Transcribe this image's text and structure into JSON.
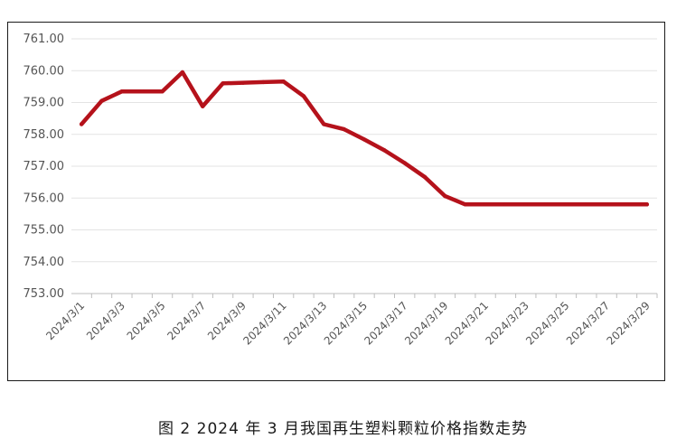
{
  "caption": "图 2  2024 年 3 月我国再生塑料颗粒价格指数走势",
  "chart_data": {
    "type": "line",
    "title": "",
    "xlabel": "",
    "ylabel": "",
    "ylim": [
      753.0,
      761.0
    ],
    "yticks": [
      753.0,
      754.0,
      755.0,
      756.0,
      757.0,
      758.0,
      759.0,
      760.0,
      761.0
    ],
    "ytick_labels": [
      "753.00",
      "754.00",
      "755.00",
      "756.00",
      "757.00",
      "758.00",
      "759.00",
      "760.00",
      "761.00"
    ],
    "grid": true,
    "legend": "none",
    "line_color": "#b5121b",
    "x_tick_labels": [
      "2024/3/1",
      "2024/3/3",
      "2024/3/5",
      "2024/3/7",
      "2024/3/9",
      "2024/3/11",
      "2024/3/13",
      "2024/3/15",
      "2024/3/17",
      "2024/3/19",
      "2024/3/21",
      "2024/3/23",
      "2024/3/25",
      "2024/3/27",
      "2024/3/29"
    ],
    "x": [
      "2024/3/1",
      "2024/3/2",
      "2024/3/3",
      "2024/3/4",
      "2024/3/5",
      "2024/3/6",
      "2024/3/7",
      "2024/3/8",
      "2024/3/9",
      "2024/3/10",
      "2024/3/11",
      "2024/3/12",
      "2024/3/13",
      "2024/3/14",
      "2024/3/15",
      "2024/3/16",
      "2024/3/17",
      "2024/3/18",
      "2024/3/19",
      "2024/3/20",
      "2024/3/21",
      "2024/3/22",
      "2024/3/23",
      "2024/3/24",
      "2024/3/25",
      "2024/3/26",
      "2024/3/27",
      "2024/3/28",
      "2024/3/29"
    ],
    "series": [
      {
        "values": [
          758.32,
          759.05,
          759.35,
          759.35,
          759.35,
          759.95,
          758.88,
          759.6,
          759.62,
          759.64,
          759.66,
          759.2,
          758.32,
          758.16,
          757.84,
          757.5,
          757.1,
          756.66,
          756.06,
          755.8,
          755.8,
          755.8,
          755.8,
          755.8,
          755.8,
          755.8,
          755.8,
          755.8,
          755.8
        ]
      }
    ]
  }
}
